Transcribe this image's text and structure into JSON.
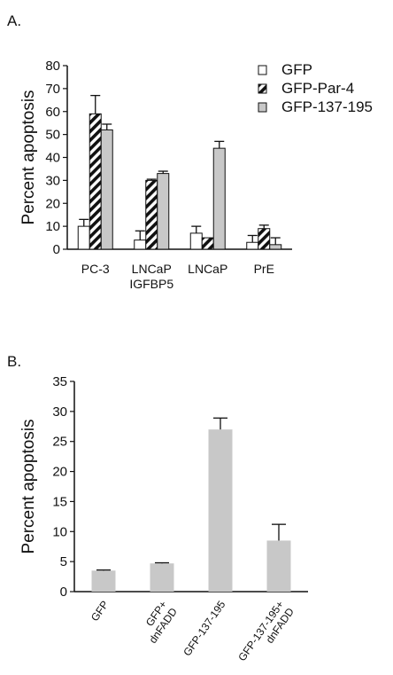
{
  "panels": [
    {
      "label": "A."
    },
    {
      "label": "B."
    }
  ],
  "chart_data": [
    {
      "type": "bar",
      "ylabel": "Percent apoptosis",
      "ylim": [
        0,
        80
      ],
      "yticks": [
        "0",
        "10",
        "20",
        "30",
        "40",
        "50",
        "60",
        "70",
        "80"
      ],
      "categories": [
        "PC-3",
        "LNCaP|IGFBP5",
        "LNCaP",
        "PrE"
      ],
      "legend_position": "top-right",
      "series": [
        {
          "name": "GFP",
          "fill": "white",
          "values": [
            10,
            4,
            7,
            3
          ],
          "errors": [
            3,
            4,
            3,
            3
          ]
        },
        {
          "name": "GFP-Par-4",
          "fill": "hatch",
          "values": [
            59,
            30,
            5,
            9
          ],
          "errors": [
            8,
            0.5,
            0,
            1.5
          ]
        },
        {
          "name": "GFP-137-195",
          "fill": "#c8c8c8",
          "values": [
            52,
            33,
            44,
            2
          ],
          "errors": [
            2.5,
            1,
            3,
            3
          ]
        }
      ]
    },
    {
      "type": "bar",
      "ylabel": "Percent apoptosis",
      "ylim": [
        0,
        35
      ],
      "yticks": [
        "0",
        "5",
        "10",
        "15",
        "20",
        "25",
        "30",
        "35"
      ],
      "categories": [
        "GFP",
        "GFP+|dnFADD",
        "GFP-137-195",
        "GFP-137-195+|dnFADD"
      ],
      "series": [
        {
          "fill": "#c8c8c8",
          "values": [
            3.5,
            4.7,
            27,
            8.5
          ],
          "errors": [
            0.1,
            0.1,
            1.9,
            2.7
          ]
        }
      ]
    }
  ]
}
